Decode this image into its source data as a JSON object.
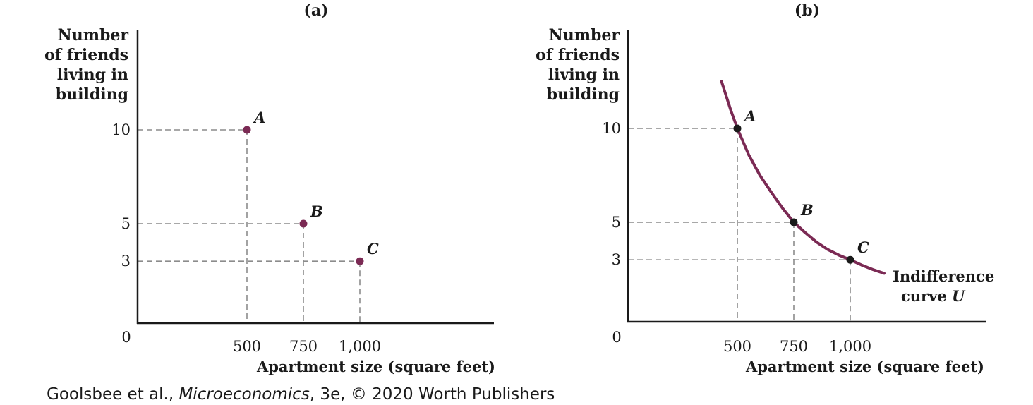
{
  "chart_data": [
    {
      "type": "scatter",
      "title": "(a)",
      "ylabel": [
        "Number",
        "of friends",
        "living in",
        "building"
      ],
      "xlabel": "Apartment size (square feet)",
      "origin_label": "0",
      "xticks": [
        "500",
        "750",
        "1,000"
      ],
      "yticks": [
        "10",
        "5",
        "3"
      ],
      "xlim": [
        0,
        1600
      ],
      "ylim": [
        0,
        12.6
      ],
      "points": [
        {
          "label": "A",
          "x": 500,
          "y": 10
        },
        {
          "label": "B",
          "x": 750,
          "y": 5
        },
        {
          "label": "C",
          "x": 1000,
          "y": 3
        }
      ],
      "point_color": "#7b2a54"
    },
    {
      "type": "line",
      "title": "(b)",
      "ylabel": [
        "Number",
        "of friends",
        "living in",
        "building"
      ],
      "xlabel": "Apartment size (square feet)",
      "origin_label": "0",
      "xticks": [
        "500",
        "750",
        "1,000"
      ],
      "yticks": [
        "10",
        "5",
        "3"
      ],
      "xlim": [
        0,
        1600
      ],
      "ylim": [
        0,
        12.6
      ],
      "points": [
        {
          "label": "A",
          "x": 500,
          "y": 10
        },
        {
          "label": "B",
          "x": 750,
          "y": 5
        },
        {
          "label": "C",
          "x": 1000,
          "y": 3
        }
      ],
      "curve": {
        "label_line1": "Indifference",
        "label_line2_prefix": "curve ",
        "label_line2_var": "U",
        "x": [
          430,
          470,
          500,
          550,
          600,
          650,
          700,
          750,
          800,
          850,
          900,
          950,
          1000,
          1050,
          1100,
          1150
        ],
        "y": [
          12.5,
          11.0,
          10.0,
          8.6,
          7.5,
          6.6,
          5.75,
          5.0,
          4.45,
          3.95,
          3.55,
          3.25,
          3.0,
          2.72,
          2.48,
          2.28
        ],
        "color": "#7b2a54"
      },
      "point_color": "#1a1a1a"
    }
  ],
  "credit": {
    "prefix": "Goolsbee et al., ",
    "book": "Microeconomics",
    "suffix": ", 3e, © 2020 Worth Publishers"
  }
}
